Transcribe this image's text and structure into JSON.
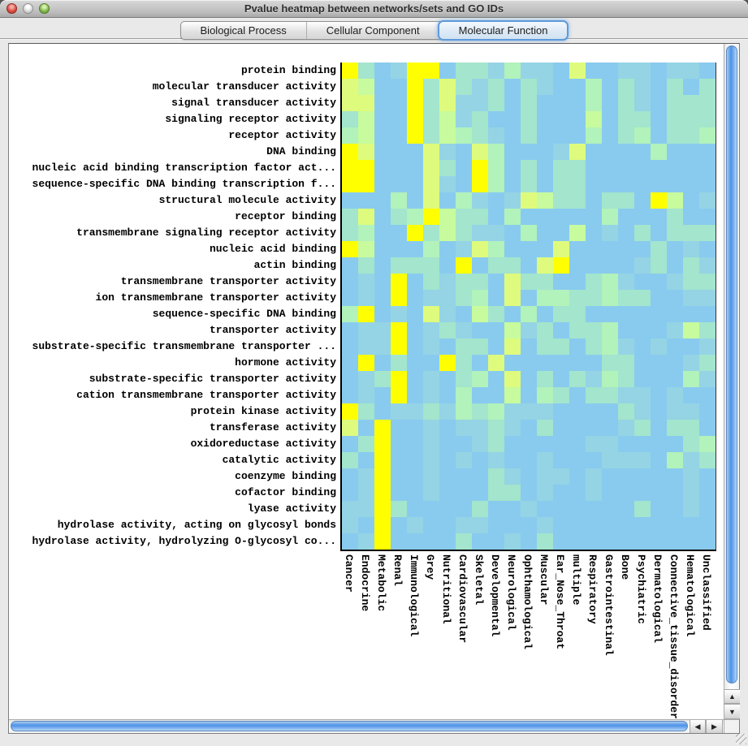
{
  "window": {
    "title": "Pvalue heatmap between networks/sets and GO IDs"
  },
  "tabs": {
    "items": [
      {
        "label": "Biological Process",
        "selected": false
      },
      {
        "label": "Cellular Component",
        "selected": false
      },
      {
        "label": "Molecular Function",
        "selected": true
      }
    ]
  },
  "chart_data": {
    "type": "heatmap",
    "x_categories": [
      "Cancer",
      "Endocrine",
      "Metabolic",
      "Renal",
      "Immunological",
      "Grey",
      "Nutritional",
      "Cardiovascular",
      "Skeletal",
      "Developmental",
      "Neurological",
      "Ophthamological",
      "Muscular",
      "Ear_Nose_Throat",
      "multiple",
      "Respiratory",
      "Gastrointestinal",
      "Bone",
      "Psychiatric",
      "Dermatological",
      "Connective_tissue_disorder",
      "Hematological",
      "Unclassified"
    ],
    "y_categories": [
      "protein binding",
      "molecular transducer activity",
      "signal transducer activity",
      "signaling receptor activity",
      "receptor activity",
      "DNA binding",
      "nucleic acid binding transcription factor act...",
      "sequence-specific DNA binding transcription f...",
      "structural molecule activity",
      "receptor binding",
      "transmembrane signaling receptor activity",
      "nucleic acid binding",
      "actin binding",
      "transmembrane transporter activity",
      "ion transmembrane transporter activity",
      "sequence-specific DNA binding",
      "transporter activity",
      "substrate-specific transmembrane transporter ...",
      "hormone activity",
      "substrate-specific transporter activity",
      "cation transmembrane transporter activity",
      "protein kinase activity",
      "transferase activity",
      "oxidoreductase activity",
      "catalytic activity",
      "coenzyme binding",
      "cofactor binding",
      "lyase activity",
      "hydrolase activity, acting on glycosyl bonds",
      "hydrolase activity, hydrolyzing O-glycosyl co..."
    ],
    "palette": {
      "Y": "#ffff00",
      "y": "#defb7d",
      "g": "#c7fb9d",
      "m": "#b2f2bb",
      "t": "#a3e5cd",
      "c": "#95d4e5",
      "b": "#89cbee"
    },
    "color_order_high_to_low": [
      "Y",
      "y",
      "g",
      "m",
      "t",
      "c",
      "b"
    ],
    "cell_colors": [
      "YtbcYYbttcmccbybbccbccb",
      "ygbbYtytctbtcbbmbtcbtbt",
      "yybbYtycctbtbbbmbtcbttt",
      "tgbbYtgctbbtbbbgbttbttt",
      "mgbbYtgmtcbtbbbmbtmbttm",
      "Yybbbycbymbbbcybbbbmbbb",
      "YYbbbytbYmbtbttbbbbbbbb",
      "YYbbbycbYmbtbttbbbbbbbb",
      "bbbmbybmcbcygttbttbYgbc",
      "tybtmYgttbmbbbbbmbbbtbb",
      "tmbbYtgtccbmbbgbcbtbttt",
      "Ygbbbmbcymbbbybbbbbtbcb",
      "btbtttbYbttbyYbbbbctbtc",
      "bcbYbtcttbyttbbtmcbbctt",
      "bcbYbcctmbybmmttmttbbcc",
      "mYbcbycbgtbmbttbbbbbbbb",
      "bccYbctcbbgctbttmbbbcgt",
      "bccYbcbttbybttbtmcbcbbc",
      "bYbtbbYtbybbbbbbttbbbct",
      "bctYbcbtmbybtbtcmtbbbmc",
      "bcbYbcbmbbgbmtbttccbcbb",
      "Ytbcctcmtmcccbbbbtcbccb",
      "ybYbbcbcctcbtbbbbctbttb",
      "btYbbcbbctbbbbbccbbbbtm",
      "tbYbbcbcbcbbcbbbcccbmct",
      "bcYbbcbbbtcbccbcbbbbbcb",
      "bcYbbcbbbttbcbbcbbbbbcb",
      "ccYtbbbbtbbcbbbbbbtbbcb",
      "cbYbcbbccbbbcbbbbbbbbbb",
      "bcYbbbbtbbcbtbbbbbbbbbb"
    ]
  },
  "scrollbar": {
    "up": "▲",
    "down": "▼",
    "left": "◀",
    "right": "▶"
  }
}
